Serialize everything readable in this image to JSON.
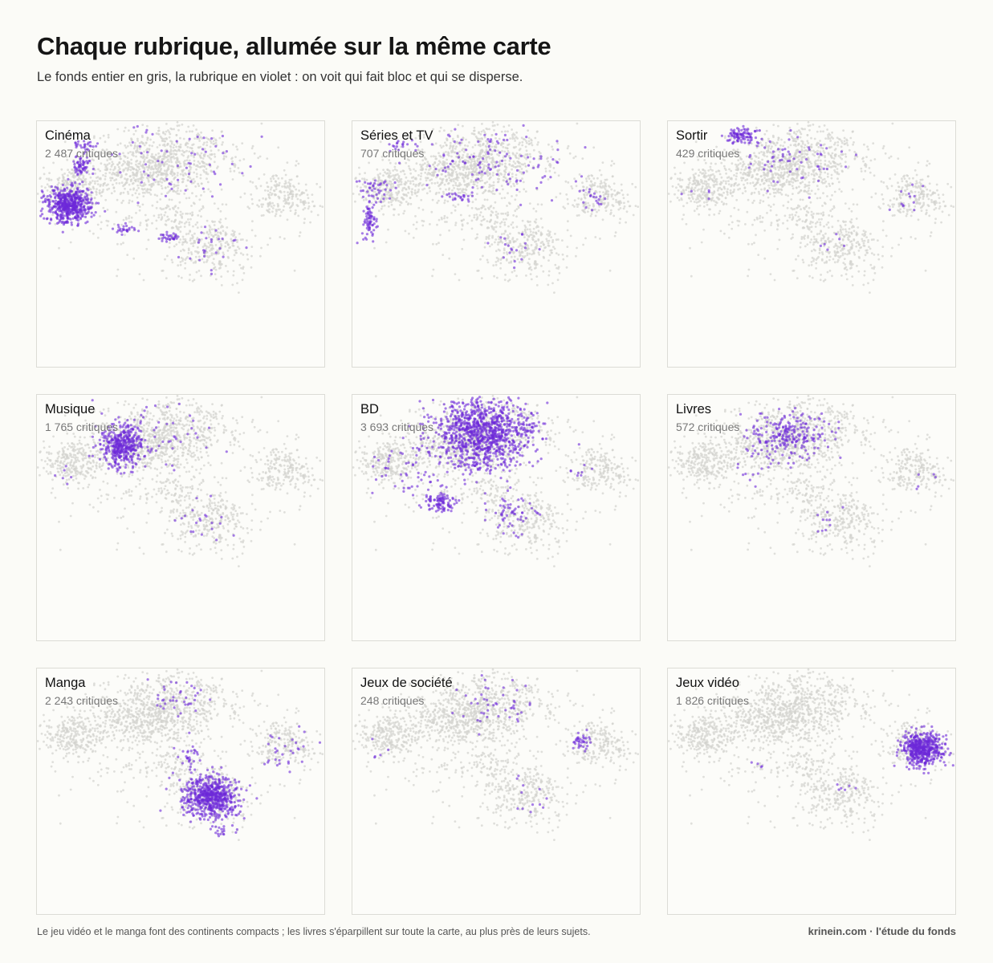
{
  "title": "Chaque rubrique, allumée sur la même carte",
  "subtitle": "Le fonds entier en gris, la rubrique en violet : on voit qui fait bloc et qui se disperse.",
  "colors": {
    "background_points": "#d3d3cf",
    "highlight_points": "#6d28d9",
    "panel_border": "#dcdcd6"
  },
  "footer": {
    "note": "Le jeu vidéo et le manga font des continents compacts ; les livres s'éparpillent sur toute la carte, au plus près de leurs sujets.",
    "credit": "krinein.com · l'étude du fonds"
  },
  "chart_data": {
    "type": "scatter",
    "description_of_axes": "unlabeled 2D embedding map, identical in every panel",
    "panels": [
      {
        "name": "Cinéma",
        "count_label": "2 487 critiques",
        "count": 2487
      },
      {
        "name": "Séries et TV",
        "count_label": "707 critiques",
        "count": 707
      },
      {
        "name": "Sortir",
        "count_label": "429 critiques",
        "count": 429
      },
      {
        "name": "Musique",
        "count_label": "1 765 critiques",
        "count": 1765
      },
      {
        "name": "BD",
        "count_label": "3 693 critiques",
        "count": 3693
      },
      {
        "name": "Livres",
        "count_label": "572 critiques",
        "count": 572
      },
      {
        "name": "Manga",
        "count_label": "2 243 critiques",
        "count": 2243
      },
      {
        "name": "Jeux de société",
        "count_label": "248 critiques",
        "count": 248
      },
      {
        "name": "Jeux vidéo",
        "count_label": "1 826 critiques",
        "count": 1826
      }
    ]
  }
}
